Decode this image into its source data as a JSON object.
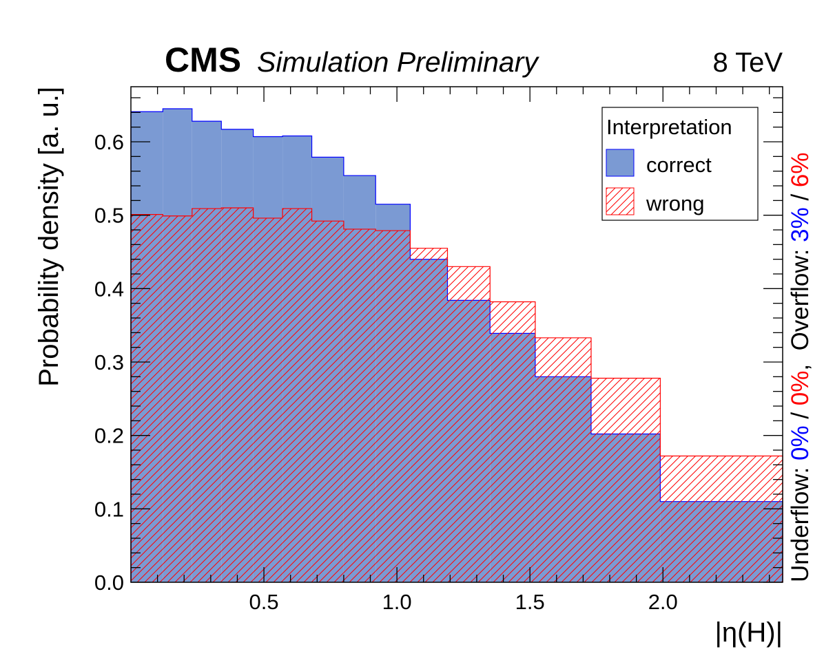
{
  "chart_data": {
    "type": "histogram",
    "title_bold": "CMS",
    "title_italic": "Simulation Preliminary",
    "energy_label": "8 TeV",
    "xlabel": "|η(H)|",
    "ylabel": "Probability density [a. u.]",
    "xlim": [
      0.0,
      2.45
    ],
    "ylim": [
      0.0,
      0.675
    ],
    "x_ticks": [
      {
        "value": 0.5,
        "label": "0.5"
      },
      {
        "value": 1.0,
        "label": "1.0"
      },
      {
        "value": 1.5,
        "label": "1.5"
      },
      {
        "value": 2.0,
        "label": "2.0"
      }
    ],
    "y_ticks": [
      {
        "value": 0.0,
        "label": "0.0"
      },
      {
        "value": 0.1,
        "label": "0.1"
      },
      {
        "value": 0.2,
        "label": "0.2"
      },
      {
        "value": 0.3,
        "label": "0.3"
      },
      {
        "value": 0.4,
        "label": "0.4"
      },
      {
        "value": 0.5,
        "label": "0.5"
      },
      {
        "value": 0.6,
        "label": "0.6"
      }
    ],
    "bin_edges": [
      0.0,
      0.12,
      0.23,
      0.34,
      0.46,
      0.57,
      0.68,
      0.8,
      0.92,
      1.05,
      1.19,
      1.35,
      1.52,
      1.73,
      1.99,
      2.45
    ],
    "legend_title": "Interpretation",
    "legend_position": "top-right",
    "series": [
      {
        "name": "correct",
        "style": "filled",
        "fill_color": "#7b9ad3",
        "line_color": "#0000ff",
        "values": [
          0.641,
          0.645,
          0.628,
          0.617,
          0.607,
          0.608,
          0.579,
          0.554,
          0.515,
          0.44,
          0.384,
          0.339,
          0.28,
          0.202,
          0.11
        ]
      },
      {
        "name": "wrong",
        "style": "hatched",
        "fill_color": "none",
        "line_color": "#ff0000",
        "values": [
          0.501,
          0.499,
          0.509,
          0.51,
          0.496,
          0.509,
          0.492,
          0.481,
          0.479,
          0.455,
          0.43,
          0.382,
          0.333,
          0.278,
          0.172
        ]
      }
    ],
    "side_annotation": [
      {
        "text": "Underflow: ",
        "color": "#000000"
      },
      {
        "text": "0%",
        "color": "#0000ff"
      },
      {
        "text": " / ",
        "color": "#000000"
      },
      {
        "text": "0%",
        "color": "#ff0000"
      },
      {
        "text": ",  Overflow: ",
        "color": "#000000"
      },
      {
        "text": "3%",
        "color": "#0000ff"
      },
      {
        "text": " / ",
        "color": "#000000"
      },
      {
        "text": "6%",
        "color": "#ff0000"
      }
    ]
  }
}
